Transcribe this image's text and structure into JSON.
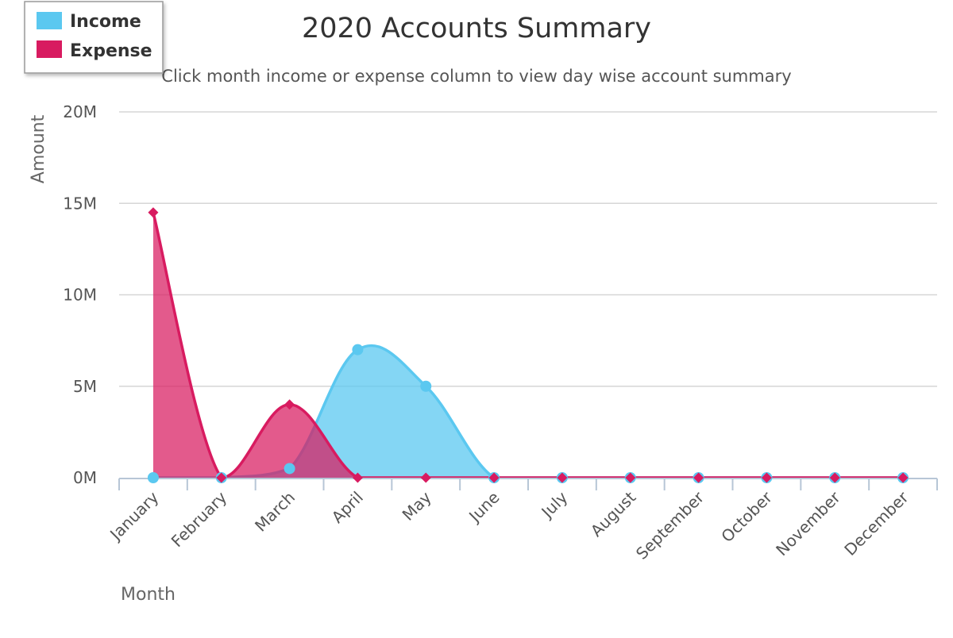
{
  "chart_data": {
    "type": "area",
    "title": "2020 Accounts Summary",
    "subtitle": "Click month income or expense column to view day wise account summary",
    "xlabel": "Month",
    "ylabel": "Amount",
    "categories": [
      "January",
      "February",
      "March",
      "April",
      "May",
      "June",
      "July",
      "August",
      "September",
      "October",
      "November",
      "December"
    ],
    "yticks": [
      "0M",
      "5M",
      "10M",
      "15M",
      "20M"
    ],
    "ylim": [
      0,
      20000000
    ],
    "grid": true,
    "legend_position": "top-left",
    "series": [
      {
        "name": "Income",
        "color": "#5bc8f0",
        "marker": "circle",
        "values": [
          0,
          0,
          500000,
          7000000,
          5000000,
          0,
          0,
          0,
          0,
          0,
          0,
          0
        ]
      },
      {
        "name": "Expense",
        "color": "#d81b60",
        "marker": "diamond",
        "values": [
          14500000,
          0,
          4000000,
          0,
          0,
          0,
          0,
          0,
          0,
          0,
          0,
          0
        ]
      }
    ]
  }
}
